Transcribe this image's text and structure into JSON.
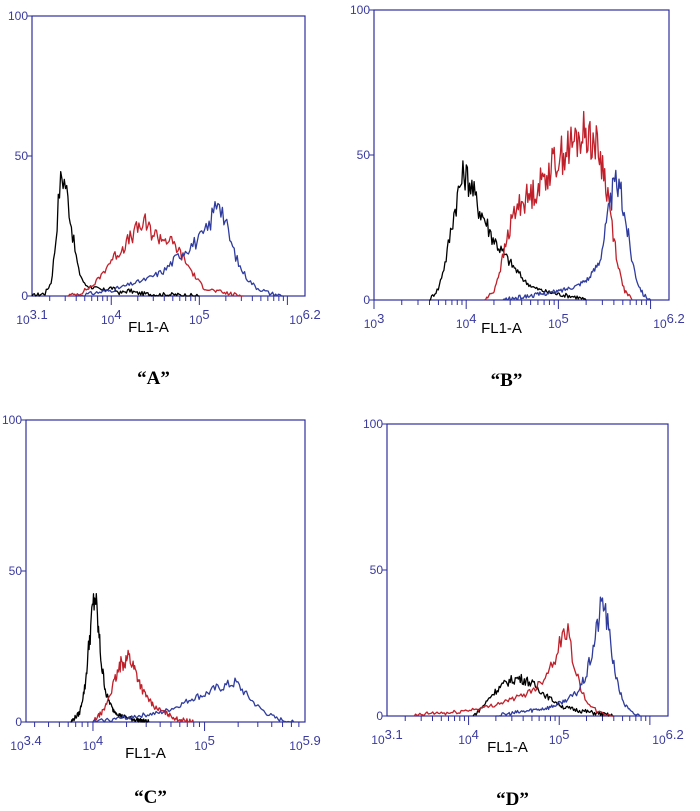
{
  "colors": {
    "axis": "#2e2e9e",
    "black_series": "#000000",
    "red_series": "#c0202a",
    "blue_series": "#2f3c9e"
  },
  "chart_data": [
    {
      "type": "line",
      "panel": "“A”",
      "xlabel": "FL1-A",
      "x_scale": "log10",
      "xlim": [
        3.1,
        6.2
      ],
      "ylim": [
        0,
        100
      ],
      "yticks": [
        0,
        50,
        100
      ],
      "xtick_labels": [
        {
          "base": "10",
          "exp": "3.1",
          "at": 3.1
        },
        {
          "base": "10",
          "exp": "4",
          "at": 4
        },
        {
          "base": "10",
          "exp": "5",
          "at": 5
        },
        {
          "base": "10",
          "exp": "6.2",
          "at": 6.2
        }
      ],
      "series": [
        {
          "color": "black",
          "points": [
            [
              3.1,
              0
            ],
            [
              3.25,
              1
            ],
            [
              3.32,
              5
            ],
            [
              3.37,
              20
            ],
            [
              3.41,
              38
            ],
            [
              3.44,
              43
            ],
            [
              3.48,
              40
            ],
            [
              3.52,
              32
            ],
            [
              3.57,
              20
            ],
            [
              3.63,
              9
            ],
            [
              3.7,
              4
            ],
            [
              3.8,
              3
            ],
            [
              3.9,
              2
            ],
            [
              4.0,
              3
            ],
            [
              4.1,
              1
            ],
            [
              4.2,
              2
            ],
            [
              4.3,
              1
            ],
            [
              4.5,
              0.5
            ],
            [
              4.7,
              0.5
            ],
            [
              5.0,
              0
            ]
          ]
        },
        {
          "color": "red",
          "points": [
            [
              3.5,
              0
            ],
            [
              3.65,
              1
            ],
            [
              3.8,
              4
            ],
            [
              3.9,
              8
            ],
            [
              4.0,
              13
            ],
            [
              4.1,
              16
            ],
            [
              4.2,
              20
            ],
            [
              4.3,
              24
            ],
            [
              4.38,
              26
            ],
            [
              4.45,
              23
            ],
            [
              4.55,
              21
            ],
            [
              4.65,
              20
            ],
            [
              4.75,
              17
            ],
            [
              4.85,
              12
            ],
            [
              4.95,
              7
            ],
            [
              5.05,
              3
            ],
            [
              5.15,
              2
            ],
            [
              5.3,
              1
            ],
            [
              5.5,
              0
            ]
          ]
        },
        {
          "color": "blue",
          "points": [
            [
              3.6,
              0
            ],
            [
              3.8,
              1
            ],
            [
              4.0,
              2
            ],
            [
              4.2,
              4
            ],
            [
              4.4,
              6
            ],
            [
              4.6,
              9
            ],
            [
              4.75,
              14
            ],
            [
              4.9,
              18
            ],
            [
              5.0,
              20
            ],
            [
              5.1,
              24
            ],
            [
              5.18,
              32
            ],
            [
              5.22,
              36
            ],
            [
              5.28,
              28
            ],
            [
              5.36,
              19
            ],
            [
              5.45,
              11
            ],
            [
              5.55,
              6
            ],
            [
              5.65,
              3
            ],
            [
              5.8,
              1
            ],
            [
              5.95,
              0
            ]
          ]
        }
      ]
    },
    {
      "type": "line",
      "panel": "“B”",
      "xlabel": "FL1-A",
      "x_scale": "log10",
      "xlim": [
        3.0,
        6.2
      ],
      "ylim": [
        0,
        100
      ],
      "yticks": [
        0,
        50,
        100
      ],
      "xtick_labels": [
        {
          "base": "10",
          "exp": "3",
          "at": 3
        },
        {
          "base": "10",
          "exp": "4",
          "at": 4
        },
        {
          "base": "10",
          "exp": "5",
          "at": 5
        },
        {
          "base": "10",
          "exp": "6.2",
          "at": 6.2
        }
      ],
      "series": [
        {
          "color": "black",
          "points": [
            [
              3.6,
              0
            ],
            [
              3.7,
              4
            ],
            [
              3.78,
              14
            ],
            [
              3.85,
              27
            ],
            [
              3.92,
              38
            ],
            [
              3.98,
              44
            ],
            [
              4.05,
              40
            ],
            [
              4.12,
              33
            ],
            [
              4.2,
              28
            ],
            [
              4.28,
              22
            ],
            [
              4.36,
              18
            ],
            [
              4.45,
              14
            ],
            [
              4.55,
              10
            ],
            [
              4.65,
              6
            ],
            [
              4.75,
              4
            ],
            [
              4.85,
              3
            ],
            [
              5.0,
              2
            ],
            [
              5.2,
              1
            ],
            [
              5.3,
              0
            ]
          ]
        },
        {
          "color": "red",
          "points": [
            [
              4.2,
              0
            ],
            [
              4.3,
              3
            ],
            [
              4.38,
              12
            ],
            [
              4.45,
              22
            ],
            [
              4.52,
              30
            ],
            [
              4.6,
              34
            ],
            [
              4.7,
              36
            ],
            [
              4.8,
              40
            ],
            [
              4.9,
              45
            ],
            [
              5.0,
              49
            ],
            [
              5.1,
              52
            ],
            [
              5.2,
              55
            ],
            [
              5.3,
              58
            ],
            [
              5.38,
              55
            ],
            [
              5.45,
              50
            ],
            [
              5.52,
              40
            ],
            [
              5.6,
              22
            ],
            [
              5.66,
              10
            ],
            [
              5.72,
              3
            ],
            [
              5.8,
              0
            ]
          ]
        },
        {
          "color": "blue",
          "points": [
            [
              4.4,
              0
            ],
            [
              4.6,
              1
            ],
            [
              4.8,
              2
            ],
            [
              5.0,
              3
            ],
            [
              5.2,
              5
            ],
            [
              5.35,
              8
            ],
            [
              5.45,
              14
            ],
            [
              5.52,
              26
            ],
            [
              5.58,
              36
            ],
            [
              5.63,
              41
            ],
            [
              5.68,
              36
            ],
            [
              5.74,
              26
            ],
            [
              5.8,
              14
            ],
            [
              5.86,
              6
            ],
            [
              5.92,
              2
            ],
            [
              6.0,
              0
            ]
          ]
        }
      ]
    },
    {
      "type": "line",
      "panel": "“C”",
      "xlabel": "FL1-A",
      "x_scale": "log10",
      "xlim": [
        3.4,
        5.9
      ],
      "ylim": [
        0,
        100
      ],
      "yticks": [
        0,
        50,
        100
      ],
      "xtick_labels": [
        {
          "base": "10",
          "exp": "3.4",
          "at": 3.4
        },
        {
          "base": "10",
          "exp": "4",
          "at": 4
        },
        {
          "base": "10",
          "exp": "5",
          "at": 5
        },
        {
          "base": "10",
          "exp": "5.9",
          "at": 5.9
        }
      ],
      "series": [
        {
          "color": "black",
          "points": [
            [
              3.8,
              0
            ],
            [
              3.88,
              3
            ],
            [
              3.93,
              12
            ],
            [
              3.97,
              28
            ],
            [
              4.0,
              38
            ],
            [
              4.02,
              42
            ],
            [
              4.05,
              30
            ],
            [
              4.08,
              18
            ],
            [
              4.12,
              9
            ],
            [
              4.18,
              4
            ],
            [
              4.25,
              2
            ],
            [
              4.35,
              1
            ],
            [
              4.5,
              0
            ]
          ]
        },
        {
          "color": "red",
          "points": [
            [
              4.0,
              0
            ],
            [
              4.1,
              4
            ],
            [
              4.18,
              12
            ],
            [
              4.25,
              19
            ],
            [
              4.32,
              22
            ],
            [
              4.38,
              17
            ],
            [
              4.45,
              10
            ],
            [
              4.55,
              5
            ],
            [
              4.65,
              3
            ],
            [
              4.75,
              1
            ],
            [
              4.9,
              0
            ]
          ]
        },
        {
          "color": "blue",
          "points": [
            [
              4.0,
              0
            ],
            [
              4.2,
              1
            ],
            [
              4.4,
              2
            ],
            [
              4.6,
              3
            ],
            [
              4.75,
              5
            ],
            [
              4.9,
              8
            ],
            [
              5.0,
              9
            ],
            [
              5.1,
              11
            ],
            [
              5.2,
              12
            ],
            [
              5.28,
              13
            ],
            [
              5.35,
              10
            ],
            [
              5.45,
              6
            ],
            [
              5.55,
              3
            ],
            [
              5.65,
              1
            ],
            [
              5.8,
              0
            ]
          ]
        }
      ]
    },
    {
      "type": "line",
      "panel": "“D”",
      "xlabel": "FL1-A",
      "x_scale": "log10",
      "xlim": [
        3.1,
        6.2
      ],
      "ylim": [
        0,
        100
      ],
      "yticks": [
        0,
        50,
        100
      ],
      "xtick_labels": [
        {
          "base": "10",
          "exp": "3.1",
          "at": 3.1
        },
        {
          "base": "10",
          "exp": "4",
          "at": 4
        },
        {
          "base": "10",
          "exp": "5",
          "at": 5
        },
        {
          "base": "10",
          "exp": "6.2",
          "at": 6.2
        }
      ],
      "series": [
        {
          "color": "black",
          "points": [
            [
              4.05,
              0
            ],
            [
              4.15,
              3
            ],
            [
              4.25,
              7
            ],
            [
              4.35,
              10
            ],
            [
              4.45,
              12
            ],
            [
              4.55,
              13
            ],
            [
              4.65,
              12
            ],
            [
              4.75,
              10
            ],
            [
              4.85,
              7
            ],
            [
              4.95,
              5
            ],
            [
              5.05,
              3
            ],
            [
              5.2,
              2
            ],
            [
              5.4,
              1
            ],
            [
              5.6,
              0
            ]
          ]
        },
        {
          "color": "red",
          "points": [
            [
              3.4,
              0
            ],
            [
              3.6,
              1
            ],
            [
              3.8,
              1
            ],
            [
              4.0,
              2
            ],
            [
              4.2,
              3
            ],
            [
              4.4,
              5
            ],
            [
              4.6,
              7
            ],
            [
              4.75,
              10
            ],
            [
              4.85,
              14
            ],
            [
              4.95,
              20
            ],
            [
              5.02,
              26
            ],
            [
              5.08,
              30
            ],
            [
              5.12,
              25
            ],
            [
              5.18,
              16
            ],
            [
              5.25,
              8
            ],
            [
              5.35,
              3
            ],
            [
              5.45,
              1
            ],
            [
              5.6,
              0
            ]
          ]
        },
        {
          "color": "blue",
          "points": [
            [
              4.3,
              0
            ],
            [
              4.5,
              1
            ],
            [
              4.7,
              2
            ],
            [
              4.9,
              3
            ],
            [
              5.05,
              5
            ],
            [
              5.2,
              8
            ],
            [
              5.3,
              14
            ],
            [
              5.38,
              24
            ],
            [
              5.44,
              34
            ],
            [
              5.48,
              40
            ],
            [
              5.52,
              34
            ],
            [
              5.58,
              22
            ],
            [
              5.65,
              10
            ],
            [
              5.72,
              4
            ],
            [
              5.8,
              1
            ],
            [
              5.9,
              0
            ]
          ]
        }
      ]
    }
  ]
}
